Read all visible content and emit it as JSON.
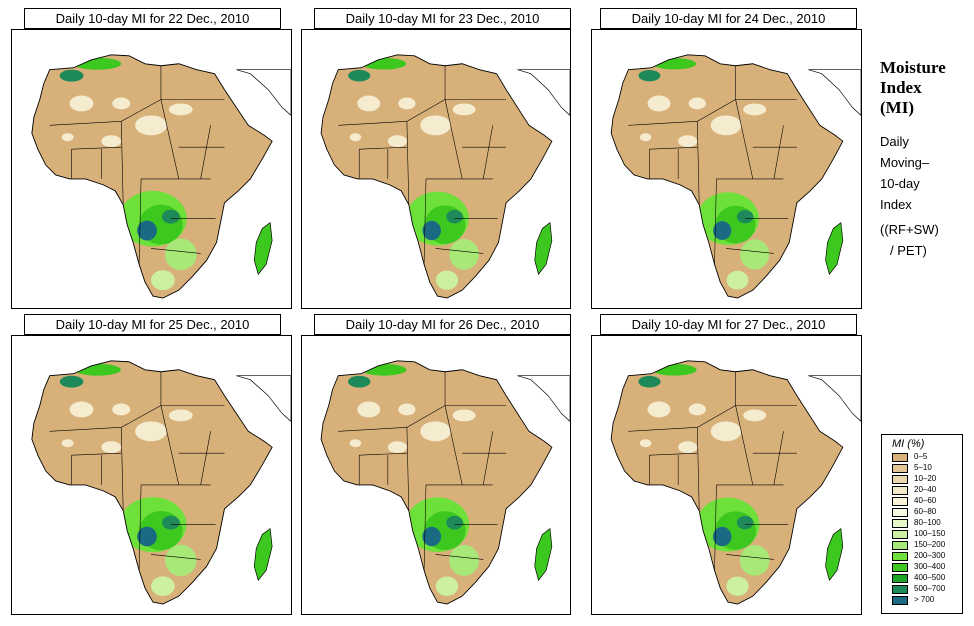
{
  "panels": [
    {
      "title": "Daily 10-day MI for  22 Dec., 2010",
      "wetness": 1.0
    },
    {
      "title": "Daily 10-day MI for  23 Dec., 2010",
      "wetness": 0.85
    },
    {
      "title": "Daily 10-day MI for  24 Dec., 2010",
      "wetness": 0.75
    },
    {
      "title": "Daily 10-day MI for  25 Dec., 2010",
      "wetness": 0.95
    },
    {
      "title": "Daily 10-day MI for  26 Dec., 2010",
      "wetness": 0.9
    },
    {
      "title": "Daily 10-day MI for  27 Dec., 2010",
      "wetness": 0.85
    }
  ],
  "sidebar": {
    "title_line1": "Moisture",
    "title_line2": "Index",
    "title_line3": "(MI)",
    "desc_line1": "Daily",
    "desc_line2": "Moving–",
    "desc_line3": "10-day",
    "desc_line4": "Index",
    "formula_line1": "((RF+SW)",
    "formula_line2": "/ PET)"
  },
  "legend": {
    "title": "MI (%)",
    "items": [
      {
        "label": "0–5",
        "color": "#d8b07a"
      },
      {
        "label": "5–10",
        "color": "#e2c496"
      },
      {
        "label": "10–20",
        "color": "#ecd6b0"
      },
      {
        "label": "20–40",
        "color": "#f4e6c8"
      },
      {
        "label": "40–60",
        "color": "#f8f2d8"
      },
      {
        "label": "60–80",
        "color": "#f6fae0"
      },
      {
        "label": "80–100",
        "color": "#e8f8c8"
      },
      {
        "label": "100–150",
        "color": "#ccf0a0"
      },
      {
        "label": "150–200",
        "color": "#a8e878"
      },
      {
        "label": "200–300",
        "color": "#6ee03a"
      },
      {
        "label": "300–400",
        "color": "#3cc81e"
      },
      {
        "label": "400–500",
        "color": "#1ea428"
      },
      {
        "label": "500–700",
        "color": "#1e8a5a"
      },
      {
        "label": "> 700",
        "color": "#1a6a84"
      }
    ]
  }
}
